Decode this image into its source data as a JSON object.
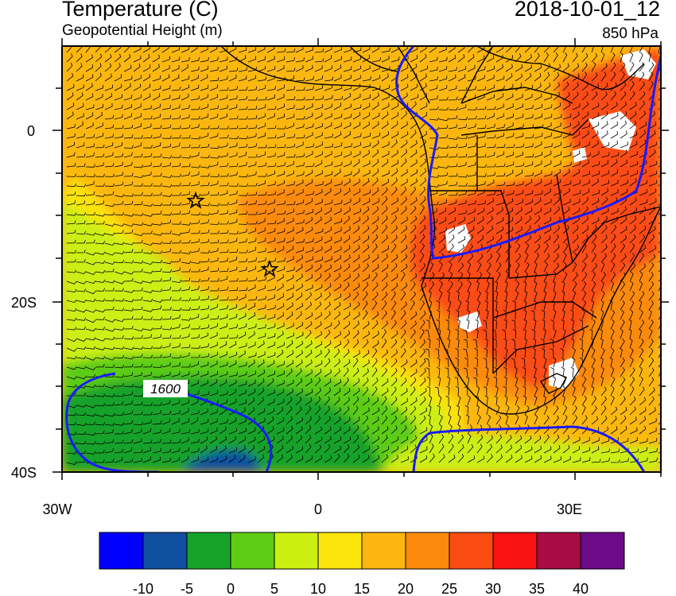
{
  "header": {
    "title": "Temperature (C)",
    "subtitle": "Geopotential Height (m)",
    "datetime": "2018-10-01_12",
    "level": "850 hPa"
  },
  "axes": {
    "y_labels": [
      "0",
      "20S",
      "40S"
    ],
    "x_labels": [
      "30W",
      "0",
      "30E"
    ]
  },
  "contour_label": "1600",
  "colorbar": {
    "colors": [
      "#0000ff",
      "#0f4fa0",
      "#17a22a",
      "#5ccc15",
      "#ccef12",
      "#fbe30c",
      "#fbb70f",
      "#fb8a0d",
      "#fb4c12",
      "#f81212",
      "#a80c45",
      "#6c0a89"
    ],
    "labels": [
      "-10",
      "-5",
      "0",
      "5",
      "10",
      "15",
      "20",
      "25",
      "30",
      "35",
      "40"
    ]
  },
  "palette": {
    "orange_light": "#fbb70f",
    "orange": "#fb8a0d",
    "red_orange": "#fb4c12",
    "yellow": "#fbe30c",
    "yellow_green": "#ccef12",
    "green_light": "#5ccc15",
    "green": "#17a22a",
    "blue_dark": "#0f4fa0",
    "contour": "#1a1aff"
  },
  "markers": [
    "star-marker",
    "star-marker"
  ]
}
